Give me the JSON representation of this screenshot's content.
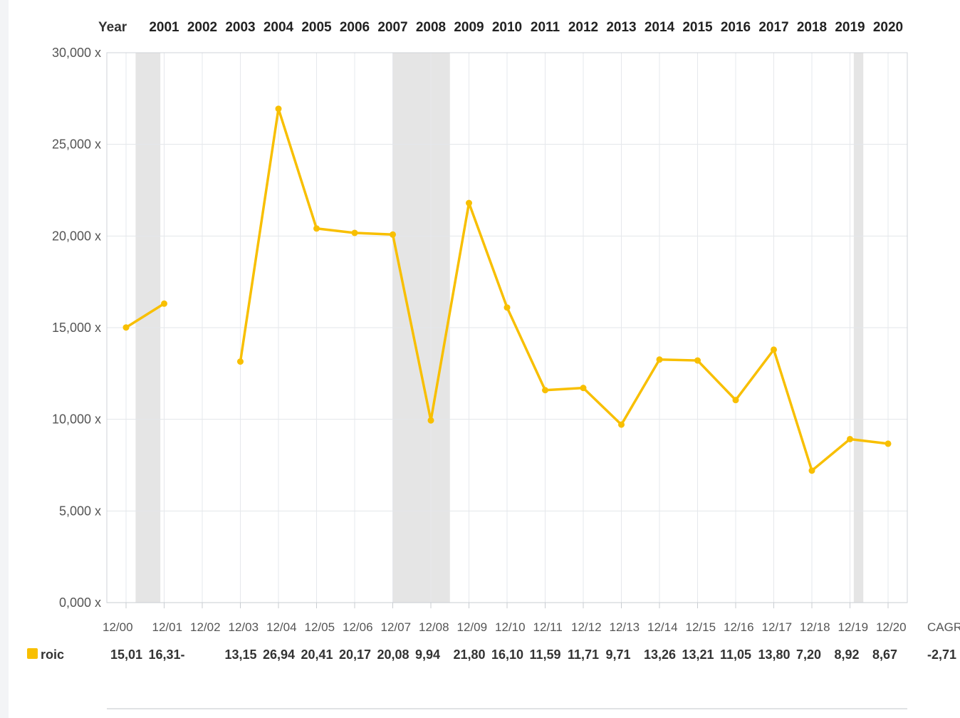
{
  "chart_data": {
    "type": "line",
    "header_label": "Year",
    "years": [
      "2001",
      "2002",
      "2003",
      "2004",
      "2005",
      "2006",
      "2007",
      "2008",
      "2009",
      "2010",
      "2011",
      "2012",
      "2013",
      "2014",
      "2015",
      "2016",
      "2017",
      "2018",
      "2019",
      "2020"
    ],
    "categories": [
      "12/00",
      "12/01",
      "12/02",
      "12/03",
      "12/04",
      "12/05",
      "12/06",
      "12/07",
      "12/08",
      "12/09",
      "12/10",
      "12/11",
      "12/12",
      "12/13",
      "12/14",
      "12/15",
      "12/16",
      "12/17",
      "12/18",
      "12/19",
      "12/20"
    ],
    "series": [
      {
        "name": "roic",
        "color": "#f8bf00",
        "values": [
          15.01,
          16.31,
          null,
          13.15,
          26.94,
          20.41,
          20.17,
          20.08,
          9.94,
          21.8,
          16.1,
          11.59,
          11.71,
          9.71,
          13.26,
          13.21,
          11.05,
          13.8,
          7.2,
          8.92,
          8.67
        ],
        "value_labels": [
          "15,01",
          "16,31-",
          "",
          "13,15",
          "26,94",
          "20,41",
          "20,17",
          "20,08",
          "9,94",
          "21,80",
          "16,10",
          "11,59",
          "11,71",
          "9,71",
          "13,26",
          "13,21",
          "11,05",
          "13,80",
          "7,20",
          "8,92",
          "8,67"
        ]
      }
    ],
    "ylim": [
      0,
      30
    ],
    "yticks": [
      0,
      5,
      10,
      15,
      20,
      25,
      30
    ],
    "ytick_labels": [
      "0,000 x",
      "5,000 x",
      "10,000 x",
      "15,000 x",
      "20,000 x",
      "25,000 x",
      "30,000 x"
    ],
    "grid": true,
    "shaded_ranges": [
      [
        0.25,
        0.9
      ],
      [
        7.0,
        8.5
      ],
      [
        19.1,
        19.35
      ]
    ],
    "cagr_label": "CAGR",
    "cagr_value": "-2,71",
    "legend_position": "bottom-left"
  }
}
